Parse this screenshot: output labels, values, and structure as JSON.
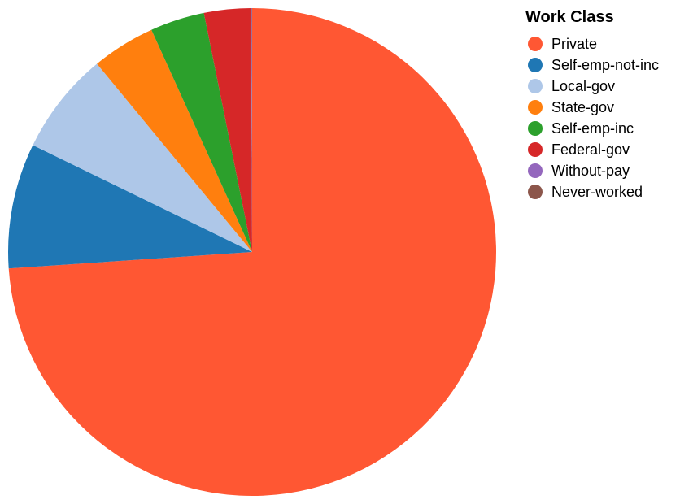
{
  "chart_data": {
    "type": "pie",
    "legend": {
      "title": "Work Class",
      "placement": "top-right"
    },
    "start_angle_deg": 0,
    "direction": "clockwise",
    "slices": [
      {
        "label": "Private",
        "value": 73.9,
        "color": "#ff5733"
      },
      {
        "label": "Self-emp-not-inc",
        "value": 8.3,
        "color": "#1f77b4"
      },
      {
        "label": "Local-gov",
        "value": 6.8,
        "color": "#aec7e8"
      },
      {
        "label": "State-gov",
        "value": 4.2,
        "color": "#ff7f0e"
      },
      {
        "label": "Self-emp-inc",
        "value": 3.6,
        "color": "#2ca02c"
      },
      {
        "label": "Federal-gov",
        "value": 3.1,
        "color": "#d62728"
      },
      {
        "label": "Without-pay",
        "value": 0.05,
        "color": "#9467bd"
      },
      {
        "label": "Never-worked",
        "value": 0.02,
        "color": "#8c564b"
      }
    ]
  }
}
